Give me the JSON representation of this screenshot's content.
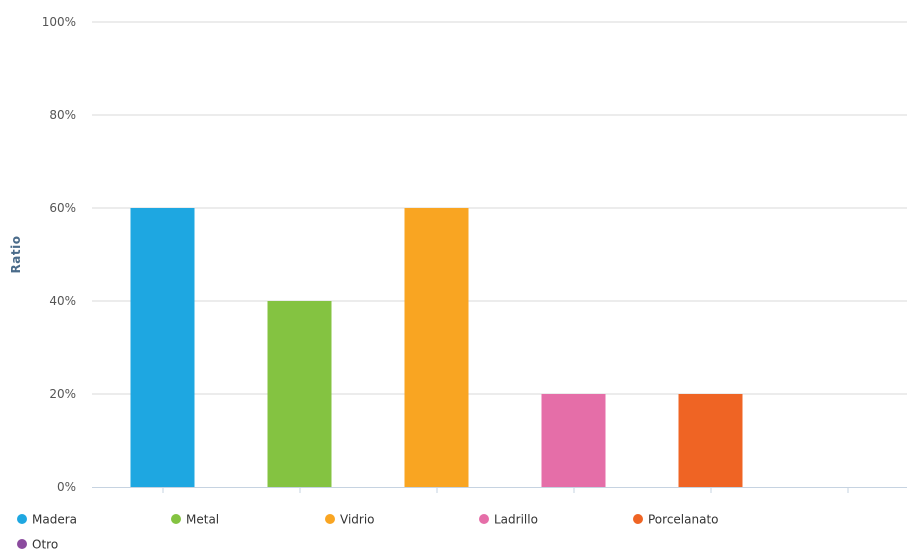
{
  "chart_data": {
    "type": "bar",
    "title": "",
    "xlabel": "",
    "ylabel": "Ratio",
    "ylim": [
      0,
      100
    ],
    "y_ticks": [
      "0%",
      "20%",
      "40%",
      "60%",
      "80%",
      "100%"
    ],
    "y_tick_values": [
      0,
      20,
      40,
      60,
      80,
      100
    ],
    "categories": [
      "Madera",
      "Metal",
      "Vidrio",
      "Ladrillo",
      "Porcelanato",
      "Otro"
    ],
    "values": [
      60,
      40,
      60,
      20,
      20,
      0
    ],
    "colors": [
      "#1ea7e1",
      "#84c341",
      "#f9a522",
      "#e56ea8",
      "#ef6424",
      "#8b4b9e"
    ],
    "grid": true,
    "legend_position": "bottom-left"
  }
}
